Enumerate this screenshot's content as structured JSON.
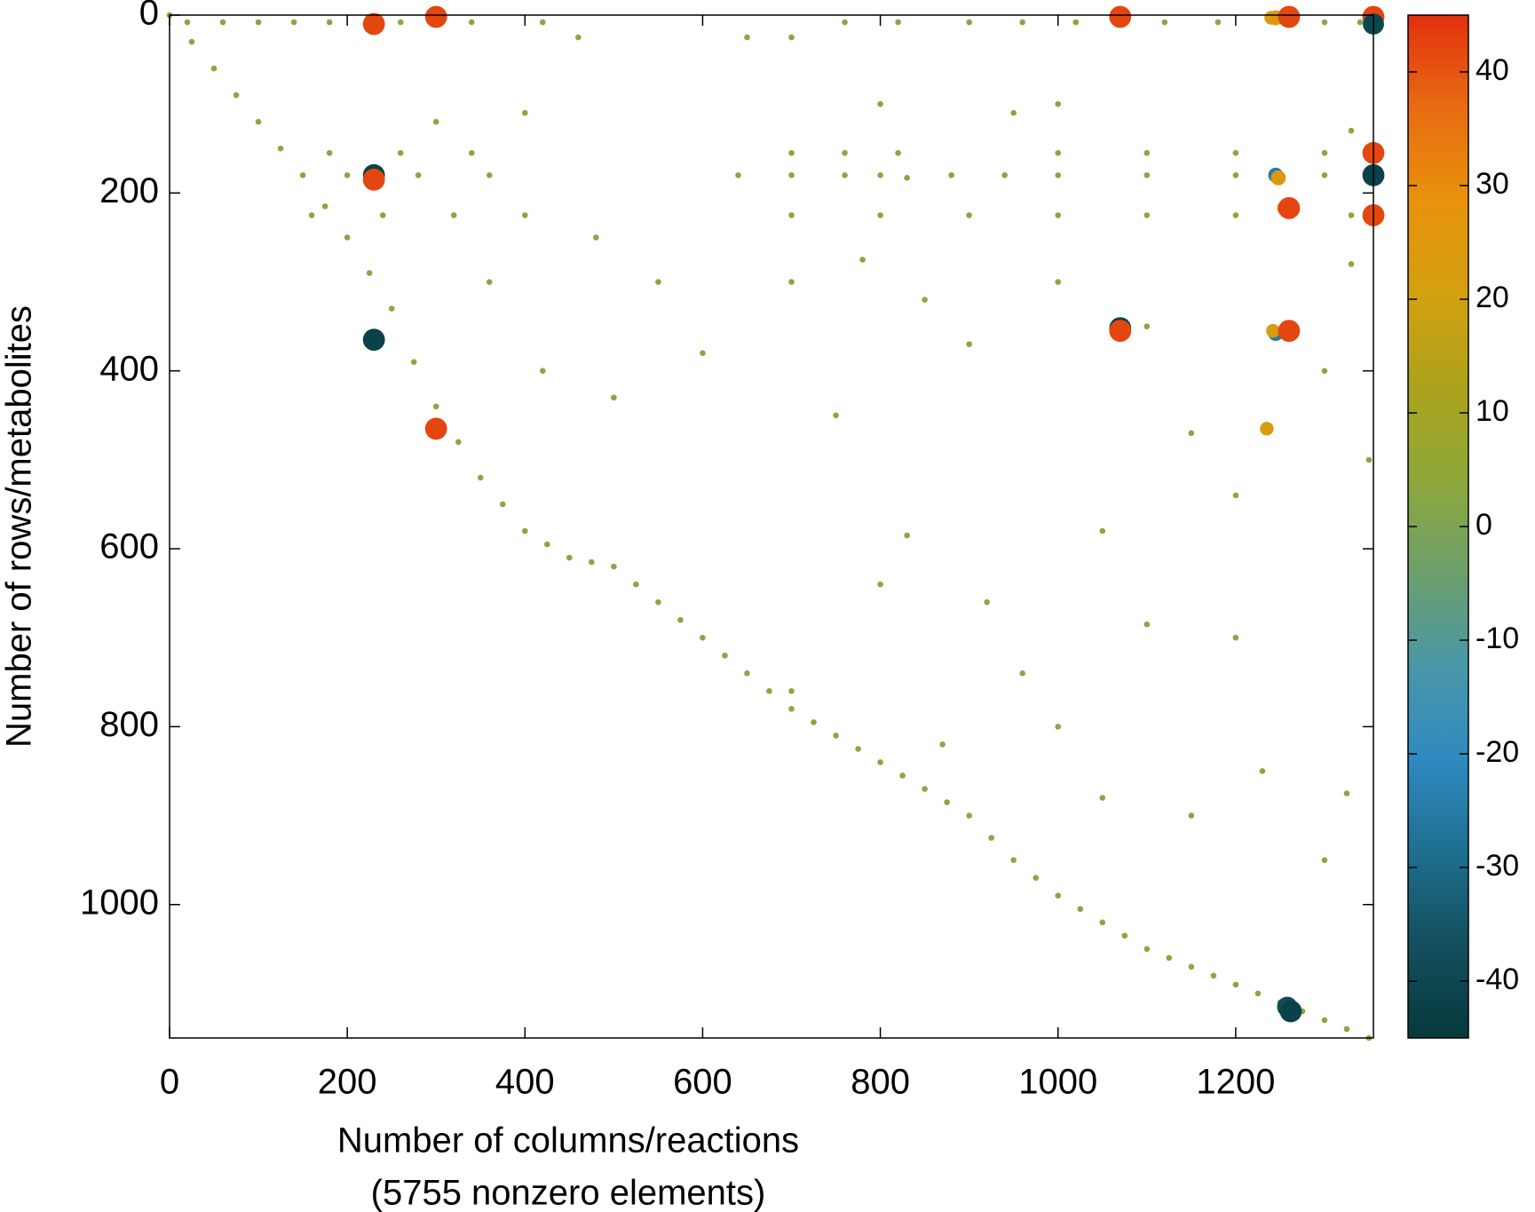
{
  "chart_data": {
    "type": "scatter",
    "x_label": "Number of columns/reactions",
    "x_label_2": "(5755 nonzero elements)",
    "y_label": "Number of rows/metabolites",
    "xlim": [
      0,
      1355
    ],
    "ylim": [
      0,
      1150
    ],
    "y_inverted": true,
    "xticks": [
      0,
      200,
      400,
      600,
      800,
      1000,
      1200
    ],
    "yticks": [
      0,
      200,
      400,
      600,
      800,
      1000
    ],
    "clim": [
      -45,
      45
    ],
    "cticks": [
      -40,
      -30,
      -20,
      -10,
      0,
      10,
      20,
      30,
      40
    ],
    "colormap": [
      "#06393b",
      "#134f5e",
      "#1e6f8f",
      "#2f8ac0",
      "#4a97a8",
      "#6d9f6c",
      "#8ea83a",
      "#aca21c",
      "#d3a010",
      "#e8920c",
      "#e86c12",
      "#e2300e"
    ],
    "x": [
      20,
      60,
      100,
      140,
      180,
      260,
      340,
      420,
      460,
      650,
      700,
      760,
      820,
      900,
      960,
      1020,
      1120,
      1180,
      1300,
      1340,
      0,
      25,
      50,
      75,
      100,
      125,
      150,
      175,
      200,
      225,
      250,
      275,
      300,
      325,
      350,
      375,
      400,
      425,
      450,
      475,
      500,
      525,
      550,
      575,
      600,
      625,
      650,
      675,
      700,
      725,
      750,
      775,
      800,
      825,
      850,
      875,
      900,
      925,
      950,
      975,
      1000,
      1025,
      1050,
      1075,
      1100,
      1125,
      1150,
      1175,
      1200,
      1225,
      1250,
      1275,
      1300,
      1325,
      1350,
      180,
      260,
      340,
      700,
      760,
      820,
      1000,
      1100,
      1200,
      1300,
      200,
      280,
      360,
      640,
      700,
      760,
      800,
      880,
      940,
      1000,
      1100,
      1200,
      1300,
      160,
      240,
      320,
      400,
      700,
      800,
      900,
      1000,
      1100,
      1200,
      1330,
      830,
      830,
      1100,
      1325,
      780,
      850,
      900,
      1150,
      1200,
      1050,
      960,
      1000,
      1150,
      1300,
      1200,
      800,
      920,
      700,
      870,
      1050,
      1230,
      500,
      550,
      600,
      480,
      360,
      420,
      700,
      750,
      1000,
      1100,
      1300,
      1350,
      1330,
      1330,
      950,
      800,
      1000,
      400,
      300,
      230,
      300,
      1070,
      1240,
      1245,
      1260,
      1355,
      1355,
      230,
      230,
      1355,
      1355,
      1245,
      1248,
      1255,
      1260,
      1355,
      230,
      1070,
      1070,
      1245,
      1242,
      1260,
      300,
      1235,
      1258,
      1262
    ],
    "values": [
      8,
      8,
      8,
      8,
      8,
      8,
      8,
      8,
      25,
      25,
      25,
      8,
      8,
      8,
      8,
      8,
      8,
      8,
      8,
      8,
      0,
      30,
      60,
      90,
      120,
      150,
      180,
      215,
      250,
      290,
      330,
      390,
      440,
      480,
      520,
      550,
      580,
      595,
      610,
      615,
      620,
      640,
      660,
      680,
      700,
      720,
      740,
      760,
      780,
      795,
      810,
      825,
      840,
      855,
      870,
      885,
      900,
      925,
      950,
      970,
      990,
      1005,
      1020,
      1035,
      1050,
      1060,
      1070,
      1080,
      1090,
      1100,
      1110,
      1120,
      1130,
      1140,
      1150,
      155,
      155,
      155,
      155,
      155,
      155,
      155,
      155,
      155,
      155,
      180,
      180,
      180,
      180,
      180,
      180,
      180,
      180,
      180,
      180,
      180,
      180,
      180,
      225,
      225,
      225,
      225,
      225,
      225,
      225,
      225,
      225,
      225,
      225,
      183,
      585,
      685,
      875,
      275,
      320,
      370,
      470,
      540,
      580,
      740,
      800,
      900,
      950,
      700,
      640,
      660,
      760,
      820,
      880,
      850,
      430,
      300,
      380,
      250,
      300,
      400,
      300,
      450,
      300,
      350,
      400,
      500,
      280,
      130,
      110,
      100,
      100,
      110,
      120,
      10,
      2,
      2,
      3,
      3,
      2,
      2,
      10,
      180,
      185,
      155,
      180,
      180,
      183,
      217,
      217,
      225,
      365,
      352,
      355,
      358,
      355,
      355,
      465,
      465,
      1115,
      1120
    ],
    "color_values": [
      3,
      3,
      3,
      3,
      3,
      3,
      3,
      3,
      3,
      3,
      3,
      3,
      3,
      3,
      3,
      3,
      3,
      3,
      3,
      3,
      3,
      3,
      3,
      3,
      3,
      3,
      3,
      3,
      3,
      3,
      3,
      3,
      3,
      3,
      3,
      3,
      3,
      3,
      3,
      3,
      3,
      3,
      3,
      3,
      3,
      3,
      3,
      3,
      3,
      3,
      3,
      3,
      3,
      3,
      3,
      3,
      3,
      3,
      3,
      3,
      3,
      3,
      3,
      3,
      3,
      3,
      3,
      3,
      3,
      3,
      3,
      3,
      3,
      3,
      3,
      3,
      3,
      3,
      3,
      3,
      3,
      3,
      3,
      3,
      3,
      3,
      3,
      3,
      3,
      3,
      3,
      3,
      3,
      3,
      3,
      3,
      3,
      3,
      3,
      3,
      3,
      3,
      3,
      3,
      3,
      3,
      3,
      3,
      3,
      3,
      3,
      3,
      3,
      3,
      3,
      3,
      3,
      3,
      3,
      3,
      3,
      3,
      3,
      3,
      3,
      3,
      3,
      3,
      3,
      3,
      3,
      3,
      3,
      3,
      3,
      3,
      3,
      3,
      3,
      3,
      3,
      3,
      3,
      3,
      3,
      3,
      3,
      3,
      3,
      42,
      42,
      42,
      22,
      25,
      42,
      42,
      -40,
      -42,
      42,
      42,
      -42,
      -25,
      25,
      25,
      42,
      42,
      -42,
      -42,
      42,
      -25,
      22,
      42,
      42,
      22,
      -38,
      -42
    ]
  }
}
